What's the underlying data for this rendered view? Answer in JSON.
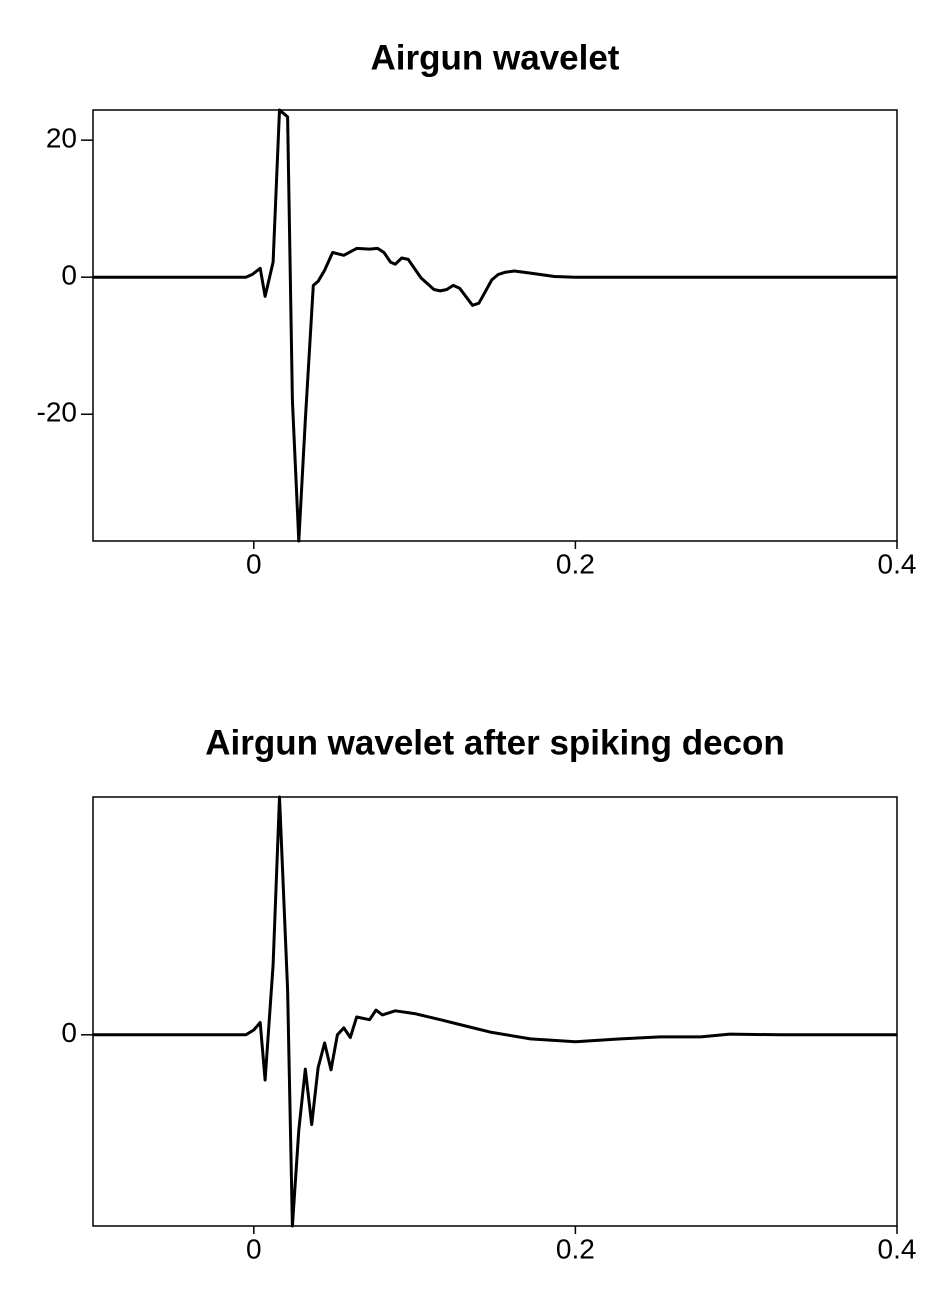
{
  "chart_data": [
    {
      "type": "line",
      "title": "Airgun wavelet",
      "x": [
        -0.1,
        -0.005,
        -0.001,
        0.004,
        0.007,
        0.012,
        0.016,
        0.021,
        0.024,
        0.028,
        0.032,
        0.037,
        0.04,
        0.044,
        0.049,
        0.056,
        0.064,
        0.072,
        0.077,
        0.081,
        0.085,
        0.088,
        0.092,
        0.096,
        0.104,
        0.112,
        0.116,
        0.12,
        0.124,
        0.128,
        0.136,
        0.14,
        0.148,
        0.152,
        0.156,
        0.162,
        0.172,
        0.187,
        0.2,
        0.4
      ],
      "values": [
        0,
        0,
        0.4,
        1.3,
        -2.8,
        2.2,
        24.4,
        23.4,
        -18,
        -38.5,
        -20.9,
        -1.2,
        -0.6,
        1.0,
        3.6,
        3.2,
        4.2,
        4.1,
        4.2,
        3.6,
        2.2,
        1.9,
        2.8,
        2.6,
        -0.1,
        -1.8,
        -2.0,
        -1.8,
        -1.2,
        -1.6,
        -4.1,
        -3.8,
        -0.4,
        0.4,
        0.7,
        0.9,
        0.6,
        0.1,
        0,
        0
      ],
      "color": "#000000",
      "xlim": [
        -0.1,
        0.4
      ],
      "xticks": [
        0,
        0.2,
        0.4
      ],
      "ylim": [
        -38.5,
        24.4
      ],
      "yticks": [
        -20,
        0,
        20
      ]
    },
    {
      "type": "line",
      "title": "Airgun wavelet after spiking decon",
      "x": [
        -0.1,
        -0.005,
        0,
        0.004,
        0.007,
        0.012,
        0.016,
        0.021,
        0.024,
        0.028,
        0.032,
        0.036,
        0.04,
        0.044,
        0.048,
        0.052,
        0.056,
        0.06,
        0.064,
        0.072,
        0.076,
        0.08,
        0.088,
        0.1,
        0.116,
        0.128,
        0.147,
        0.172,
        0.2,
        0.228,
        0.253,
        0.278,
        0.296,
        0.327,
        0.4
      ],
      "values": [
        0,
        0,
        0.7,
        1.8,
        -6.6,
        10.2,
        34.7,
        6.6,
        -27.9,
        -13.9,
        -5.0,
        -13.1,
        -4.8,
        -1.2,
        -5.1,
        0,
        1.0,
        -0.4,
        2.6,
        2.2,
        3.6,
        2.9,
        3.5,
        3.1,
        2.2,
        1.5,
        0.4,
        -0.6,
        -1.0,
        -0.6,
        -0.3,
        -0.3,
        0.1,
        0,
        0
      ],
      "color": "#000000",
      "xlim": [
        -0.1,
        0.4
      ],
      "xticks": [
        0,
        0.2,
        0.4
      ],
      "ylim": [
        -27.9,
        34.7
      ],
      "yticks": [
        0
      ]
    }
  ]
}
